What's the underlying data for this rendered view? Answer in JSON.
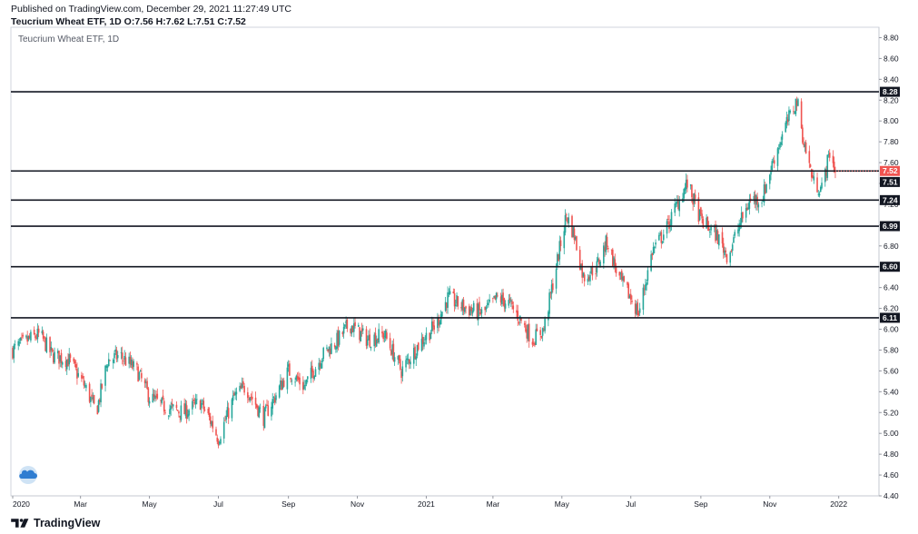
{
  "header": {
    "published": "Published on TradingView.com, December 29, 2021 11:27:49 UTC",
    "ohlc": "Teucrium Wheat ETF, 1D O:7.56 H:7.62 L:7.51 C:7.52"
  },
  "footer": {
    "brand": "TradingView",
    "logo_icon": "tradingview-logo-icon"
  },
  "colors": {
    "up": "#26a69a",
    "down": "#ef5350",
    "level_line": "#131722",
    "price_line": "#ef5350",
    "level_badge": "#131722",
    "price_badge": "#ef5350"
  },
  "chart_data": {
    "type": "candlestick",
    "title": "Teucrium Wheat ETF, 1D",
    "ylim": [
      4.4,
      8.9
    ],
    "y_ticks": [
      4.4,
      4.6,
      4.8,
      5.0,
      5.2,
      5.4,
      5.6,
      5.8,
      6.0,
      6.2,
      6.4,
      6.6,
      6.8,
      7.0,
      7.2,
      7.4,
      7.6,
      7.8,
      8.0,
      8.2,
      8.4,
      8.6,
      8.8
    ],
    "y_tick_labels": [
      "4.40",
      "4.60",
      "4.80",
      "5.00",
      "5.20",
      "5.40",
      "5.60",
      "5.80",
      "6.00",
      "6.20",
      "6.40",
      "6.60",
      "6.80",
      "7.00",
      "7.20",
      "7.40",
      "7.60",
      "7.80",
      "8.00",
      "8.20",
      "8.40",
      "8.60",
      "8.80"
    ],
    "x_tick_labels": [
      "2020",
      "Mar",
      "May",
      "Jul",
      "Sep",
      "Nov",
      "2021",
      "Mar",
      "May",
      "Jul",
      "Sep",
      "Nov",
      "2022"
    ],
    "x_tick_dates": [
      "2020-01-01",
      "2020-03-01",
      "2020-05-01",
      "2020-07-01",
      "2020-09-01",
      "2020-11-01",
      "2021-01-01",
      "2021-03-01",
      "2021-05-01",
      "2021-07-01",
      "2021-09-01",
      "2021-11-01",
      "2022-01-01"
    ],
    "x_range": [
      "2020-01-01",
      "2022-02-04"
    ],
    "horizontal_levels": [
      {
        "value": 8.28,
        "label": "8.28"
      },
      {
        "value": 7.24,
        "label": "7.24"
      },
      {
        "value": 6.99,
        "label": "6.99"
      },
      {
        "value": 6.6,
        "label": "6.60"
      },
      {
        "value": 6.11,
        "label": "6.11"
      }
    ],
    "last_price": {
      "value": 7.52,
      "label": "7.52"
    },
    "low_marker": {
      "value": 7.51,
      "label": "7.51"
    },
    "close_path": [
      [
        "2020-01-01",
        5.8
      ],
      [
        "2020-01-15",
        5.9
      ],
      [
        "2020-01-25",
        5.95
      ],
      [
        "2020-02-05",
        5.75
      ],
      [
        "2020-02-20",
        5.7
      ],
      [
        "2020-03-05",
        5.45
      ],
      [
        "2020-03-15",
        5.2
      ],
      [
        "2020-03-25",
        5.7
      ],
      [
        "2020-04-05",
        5.75
      ],
      [
        "2020-04-20",
        5.6
      ],
      [
        "2020-05-01",
        5.35
      ],
      [
        "2020-05-15",
        5.25
      ],
      [
        "2020-06-01",
        5.2
      ],
      [
        "2020-06-15",
        5.3
      ],
      [
        "2020-06-25",
        5.1
      ],
      [
        "2020-07-01",
        4.95
      ],
      [
        "2020-07-15",
        5.35
      ],
      [
        "2020-07-25",
        5.45
      ],
      [
        "2020-08-10",
        5.15
      ],
      [
        "2020-08-20",
        5.35
      ],
      [
        "2020-09-01",
        5.6
      ],
      [
        "2020-09-15",
        5.45
      ],
      [
        "2020-10-01",
        5.75
      ],
      [
        "2020-10-15",
        5.9
      ],
      [
        "2020-10-25",
        6.05
      ],
      [
        "2020-11-10",
        5.9
      ],
      [
        "2020-11-25",
        5.95
      ],
      [
        "2020-12-10",
        5.6
      ],
      [
        "2020-12-25",
        5.85
      ],
      [
        "2021-01-10",
        6.05
      ],
      [
        "2021-01-20",
        6.3
      ],
      [
        "2021-02-05",
        6.2
      ],
      [
        "2021-02-20",
        6.15
      ],
      [
        "2021-03-05",
        6.3
      ],
      [
        "2021-03-15",
        6.25
      ],
      [
        "2021-03-25",
        6.1
      ],
      [
        "2021-04-05",
        5.9
      ],
      [
        "2021-04-15",
        6.0
      ],
      [
        "2021-04-25",
        6.55
      ],
      [
        "2021-05-05",
        7.1
      ],
      [
        "2021-05-12",
        6.9
      ],
      [
        "2021-05-20",
        6.5
      ],
      [
        "2021-06-01",
        6.6
      ],
      [
        "2021-06-10",
        6.85
      ],
      [
        "2021-06-20",
        6.5
      ],
      [
        "2021-07-01",
        6.3
      ],
      [
        "2021-07-08",
        6.15
      ],
      [
        "2021-07-20",
        6.75
      ],
      [
        "2021-08-01",
        6.95
      ],
      [
        "2021-08-15",
        7.3
      ],
      [
        "2021-08-20",
        7.4
      ],
      [
        "2021-09-01",
        7.05
      ],
      [
        "2021-09-15",
        6.9
      ],
      [
        "2021-09-25",
        6.7
      ],
      [
        "2021-10-05",
        7.0
      ],
      [
        "2021-10-15",
        7.25
      ],
      [
        "2021-10-25",
        7.25
      ],
      [
        "2021-11-05",
        7.65
      ],
      [
        "2021-11-15",
        7.95
      ],
      [
        "2021-11-25",
        8.2
      ],
      [
        "2021-12-01",
        7.8
      ],
      [
        "2021-12-10",
        7.4
      ],
      [
        "2021-12-17",
        7.35
      ],
      [
        "2021-12-24",
        7.7
      ],
      [
        "2021-12-29",
        7.52
      ]
    ]
  }
}
